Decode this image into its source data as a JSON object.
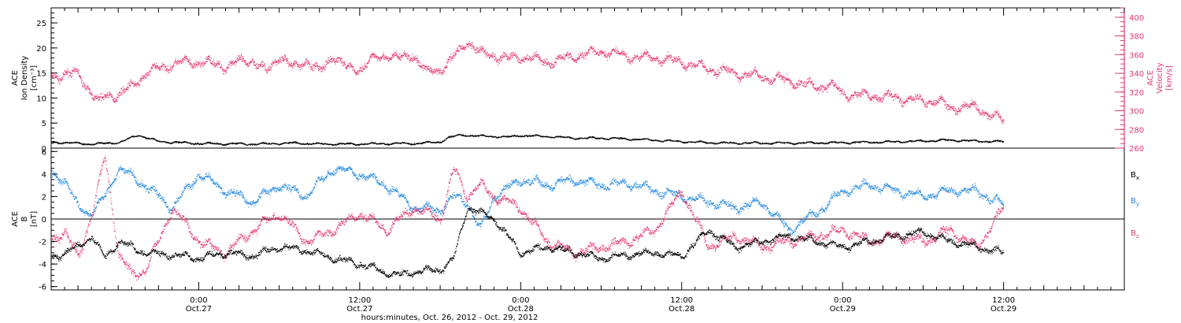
{
  "figure": {
    "xlabel": "hours:minutes, Oct. 26, 2012 - Oct. 29, 2012",
    "x_ticks": [
      {
        "time": "0:00",
        "date": "Oct.27",
        "hours": 24
      },
      {
        "time": "12:00",
        "date": "Oct.27",
        "hours": 36
      },
      {
        "time": "0:00",
        "date": "Oct.28",
        "hours": 48
      },
      {
        "time": "12:00",
        "date": "Oct.28",
        "hours": 60
      },
      {
        "time": "0:00",
        "date": "Oct.29",
        "hours": 72
      },
      {
        "time": "12:00",
        "date": "Oct.29",
        "hours": 84
      }
    ],
    "x_range_hours": [
      13.0,
      93.0
    ],
    "colors": {
      "black": "#000000",
      "pink": "#e8366b",
      "blue": "#1f86e0"
    }
  },
  "chart_data": [
    {
      "type": "scatter",
      "panel": "top",
      "ylabel": [
        "ACE",
        "Ion Density",
        "[cm⁻³]"
      ],
      "ylabel_right": [
        "ACE",
        "Velocity",
        "[km/s]"
      ],
      "ylim": [
        0,
        28
      ],
      "yticks": [
        0,
        5,
        10,
        15,
        20,
        25
      ],
      "ylim_right": [
        260,
        410
      ],
      "yticks_right": [
        260,
        280,
        300,
        320,
        340,
        360,
        380,
        400
      ],
      "series": [
        {
          "axis": "left",
          "color": "#000000",
          "x_hours": [
            13,
            16,
            18,
            19.5,
            21,
            24,
            28,
            31,
            33,
            36,
            38,
            40,
            42,
            42.5,
            43.5,
            45,
            47,
            48,
            50,
            52,
            54,
            57,
            60,
            63,
            66,
            69,
            72,
            75,
            78,
            80,
            82,
            84
          ],
          "values": [
            1.2,
            0.8,
            1.1,
            2.6,
            1.3,
            0.9,
            0.8,
            1.0,
            0.8,
            0.8,
            0.9,
            0.9,
            1.2,
            2.0,
            2.6,
            2.4,
            2.2,
            2.5,
            2.3,
            2.0,
            2.0,
            1.7,
            1.3,
            1.0,
            1.0,
            1.0,
            1.1,
            1.2,
            1.4,
            1.6,
            1.4,
            1.3
          ]
        },
        {
          "axis": "right",
          "color": "#e8366b",
          "x_hours": [
            13,
            14,
            15,
            16,
            16.5,
            17,
            18,
            19,
            20,
            21,
            22,
            24,
            26,
            28,
            29,
            30,
            31,
            32,
            33,
            34,
            35,
            36,
            37,
            38,
            39,
            40,
            41,
            42,
            42.5,
            43.5,
            44,
            45,
            46,
            47,
            48,
            50,
            52,
            54,
            56,
            58,
            60,
            62,
            64,
            66,
            68,
            70,
            71,
            72,
            74,
            76,
            78,
            79,
            80,
            81,
            82,
            83,
            84
          ],
          "values": [
            335,
            340,
            338,
            320,
            308,
            315,
            318,
            325,
            340,
            345,
            350,
            352,
            348,
            355,
            340,
            360,
            345,
            355,
            340,
            360,
            345,
            345,
            355,
            360,
            355,
            360,
            340,
            345,
            350,
            365,
            375,
            360,
            360,
            355,
            358,
            352,
            358,
            364,
            358,
            356,
            352,
            345,
            340,
            336,
            332,
            325,
            328,
            318,
            316,
            314,
            310,
            312,
            302,
            306,
            302,
            296,
            288
          ]
        }
      ]
    },
    {
      "type": "scatter",
      "panel": "bottom",
      "ylabel": [
        "ACE",
        "B",
        "[nT]"
      ],
      "ylim": [
        -6.3,
        6.3
      ],
      "yticks": [
        -6,
        -4,
        -2,
        0,
        2,
        4,
        6
      ],
      "series": [
        {
          "name": "Bx",
          "color": "#000000",
          "x_hours": [
            13,
            14,
            15,
            16,
            17,
            18,
            20,
            22,
            24,
            26,
            28,
            30,
            32,
            34,
            36,
            38,
            39,
            40,
            42,
            43,
            44,
            45,
            46,
            48,
            50,
            52,
            54,
            56,
            58,
            60,
            62,
            64,
            66,
            68,
            70,
            72,
            74,
            76,
            78,
            80,
            82,
            84
          ],
          "values": [
            -3.5,
            -3.0,
            -2.5,
            -1.5,
            -3.5,
            -2.0,
            -3.0,
            -3.2,
            -3.5,
            -3.0,
            -3.3,
            -2.5,
            -2.8,
            -3.5,
            -4.0,
            -4.8,
            -5.0,
            -4.7,
            -4.5,
            -3.5,
            1.0,
            0.5,
            0.0,
            -3.0,
            -2.5,
            -3.0,
            -3.5,
            -3.2,
            -3.0,
            -3.3,
            -1.0,
            -2.5,
            -2.0,
            -1.5,
            -2.0,
            -2.5,
            -2.0,
            -1.5,
            -1.2,
            -2.0,
            -2.5,
            -3.0
          ]
        },
        {
          "name": "By",
          "color": "#1f86e0",
          "x_hours": [
            13,
            14,
            15,
            16,
            17,
            18,
            20,
            22,
            24,
            26,
            28,
            30,
            32,
            34,
            36,
            38,
            40,
            42,
            43,
            44,
            45,
            46,
            48,
            50,
            52,
            54,
            56,
            58,
            60,
            62,
            64,
            66,
            68,
            70,
            72,
            74,
            76,
            78,
            80,
            82,
            84
          ],
          "values": [
            4.0,
            3.5,
            1.0,
            0.5,
            2.0,
            4.5,
            3.0,
            1.0,
            4.0,
            2.5,
            1.5,
            3.0,
            2.0,
            4.5,
            4.0,
            3.0,
            1.0,
            0.8,
            2.0,
            1.5,
            -1.0,
            2.0,
            3.5,
            3.0,
            3.5,
            3.0,
            3.2,
            2.5,
            2.0,
            1.5,
            1.0,
            1.5,
            -1.0,
            0.5,
            2.5,
            3.0,
            2.5,
            2.0,
            2.5,
            2.5,
            1.2
          ]
        },
        {
          "name": "Bz",
          "color": "#e8366b",
          "x_hours": [
            13,
            14,
            15,
            16,
            17,
            18,
            19,
            20,
            21,
            22,
            24,
            26,
            28,
            30,
            32,
            34,
            36,
            38,
            40,
            42,
            43,
            44,
            45,
            46,
            48,
            50,
            52,
            54,
            56,
            58,
            60,
            62,
            64,
            66,
            68,
            70,
            72,
            74,
            76,
            78,
            80,
            82,
            84
          ],
          "values": [
            -2.0,
            -1.0,
            -3.5,
            0.5,
            5.5,
            -3.0,
            -5.0,
            -4.5,
            -2.0,
            1.0,
            -2.0,
            -3.0,
            -1.0,
            0.5,
            -2.0,
            -1.0,
            0.5,
            -1.0,
            1.0,
            0.0,
            4.5,
            2.0,
            3.0,
            2.0,
            1.0,
            -2.0,
            -3.0,
            -2.5,
            -2.0,
            -1.0,
            2.5,
            -2.5,
            -1.5,
            -2.5,
            -2.0,
            -1.5,
            -1.0,
            -2.0,
            -1.5,
            -2.0,
            -1.0,
            -2.5,
            1.0
          ]
        }
      ]
    }
  ]
}
